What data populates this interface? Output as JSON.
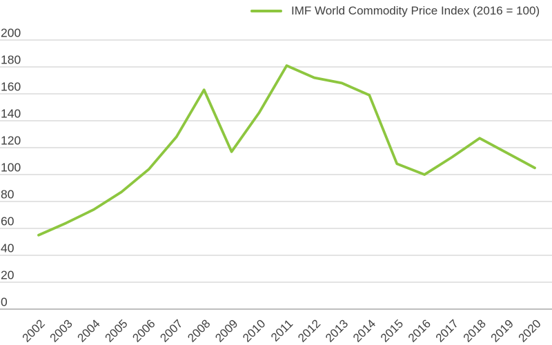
{
  "legend": {
    "label": "IMF World Commodity Price Index (2016 = 100)"
  },
  "chart_data": {
    "type": "line",
    "title": "",
    "xlabel": "",
    "ylabel": "",
    "categories": [
      "2002",
      "2003",
      "2004",
      "2005",
      "2006",
      "2007",
      "2008",
      "2009",
      "2010",
      "2011",
      "2012",
      "2013",
      "2014",
      "2015",
      "2016",
      "2017",
      "2018",
      "2019",
      "2020"
    ],
    "series": [
      {
        "name": "IMF World Commodity Price Index (2016 = 100)",
        "values": [
          55,
          64,
          74,
          87,
          104,
          128,
          163,
          117,
          146,
          181,
          172,
          168,
          159,
          108,
          100,
          113,
          127,
          116,
          105
        ]
      }
    ],
    "ylim": [
      0,
      200
    ],
    "ytick_step": 20,
    "grid": "horizontal",
    "legend_position": "top-center",
    "colors": {
      "line": "#8DC63F",
      "text": "#404040",
      "gridline": "#DADADA",
      "zero_line": "#A8A8A8",
      "background": "#FFFFFF"
    }
  }
}
